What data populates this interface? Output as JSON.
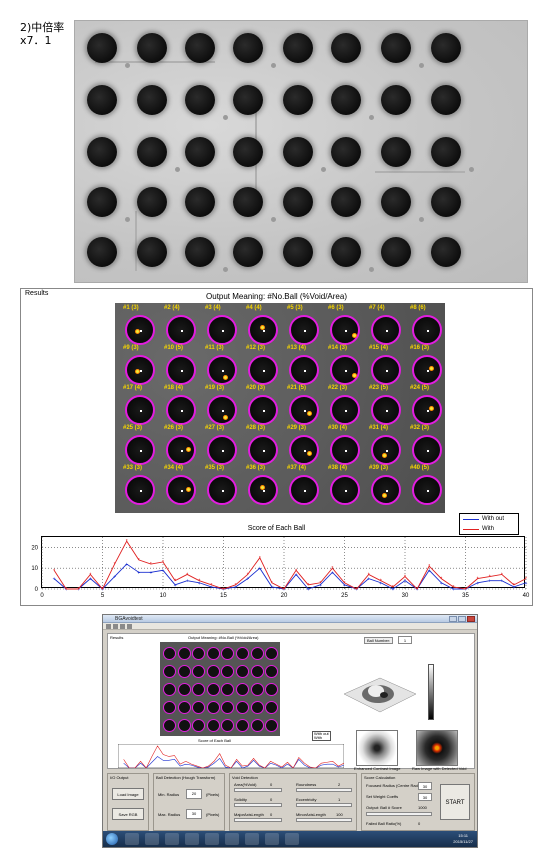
{
  "caption": {
    "line1": "2)中倍率",
    "line2": "x7．1"
  },
  "results": {
    "panel_label": "Results",
    "output_title": "Output Meaning: #No.Ball (%Void/Area)",
    "ball_labels": [
      "#1 (3)",
      "#2 (4)",
      "#3 (4)",
      "#4 (4)",
      "#5 (3)",
      "#6 (3)",
      "#7 (4)",
      "#8 (6)",
      "#9 (3)",
      "#10 (5)",
      "#11 (3)",
      "#12 (3)",
      "#13 (4)",
      "#14 (3)",
      "#15 (4)",
      "#16 (3)",
      "#17 (4)",
      "#18 (4)",
      "#19 (3)",
      "#20 (3)",
      "#21 (5)",
      "#22 (3)",
      "#23 (5)",
      "#24 (5)",
      "#25 (3)",
      "#26 (3)",
      "#27 (3)",
      "#28 (3)",
      "#29 (3)",
      "#30 (4)",
      "#31 (4)",
      "#32 (3)",
      "#33 (3)",
      "#34 (4)",
      "#35 (3)",
      "#36 (3)",
      "#37 (4)",
      "#38 (4)",
      "#39 (3)",
      "#40 (5)"
    ],
    "score_title": "Score of Each Ball"
  },
  "chart_data": {
    "type": "line",
    "title": "Score of Each Ball",
    "xlabel": "",
    "ylabel": "",
    "xlim": [
      0,
      40
    ],
    "ylim": [
      0,
      25
    ],
    "x_ticks": [
      "0",
      "5",
      "10",
      "15",
      "20",
      "25",
      "30",
      "35",
      "40"
    ],
    "y_ticks": [
      "0",
      "10",
      "20"
    ],
    "grid": "dotted",
    "legend_position": "top-right",
    "x": [
      1,
      2,
      3,
      4,
      5,
      6,
      7,
      8,
      9,
      10,
      11,
      12,
      13,
      14,
      15,
      16,
      17,
      18,
      19,
      20,
      21,
      22,
      23,
      24,
      25,
      26,
      27,
      28,
      29,
      30,
      31,
      32,
      33,
      34,
      35,
      36,
      37,
      38,
      39,
      40
    ],
    "series": [
      {
        "name": "With out",
        "color": "#1a2fd0",
        "values": [
          5,
          0,
          0,
          5,
          0,
          6,
          12,
          8,
          8,
          9,
          2,
          4,
          3,
          1,
          0,
          1,
          5,
          10,
          1,
          0,
          7,
          0,
          2,
          8,
          2,
          0,
          5,
          3,
          0,
          4,
          0,
          9,
          3,
          0,
          0,
          3,
          4,
          4,
          1,
          3
        ]
      },
      {
        "name": "With",
        "color": "#e02020",
        "values": [
          9,
          0,
          0,
          7,
          0,
          12,
          23,
          14,
          12,
          13,
          4,
          7,
          4,
          2,
          0,
          2,
          7,
          15,
          3,
          0,
          9,
          2,
          3,
          10,
          3,
          0,
          7,
          4,
          1,
          6,
          0,
          11,
          5,
          1,
          0,
          5,
          6,
          7,
          2,
          5
        ]
      }
    ]
  },
  "window": {
    "title": "BGAvoidtest",
    "results_label": "Results",
    "output_title": "Output Meaning: #No.Ball (%Void/Area)",
    "score_title": "Score of Each Ball",
    "ball_number_label": "Ball Number:",
    "ball_number_value": "1",
    "enhanced_label": "Enhanced Contrast Image",
    "raw_label": "Raw Image with Detected Void",
    "legend_without": "With out",
    "legend_with": "With",
    "io_label": "I/O Output",
    "load_button": "Load Image",
    "save_button": "Save RGB",
    "ball_detect_label": "Ball Detection (Hough Transform)",
    "min_radius_label": "Min. Radius",
    "min_radius_value": "20",
    "min_radius_unit": "(Pixels)",
    "max_radius_label": "Max. Radius",
    "max_radius_value": "30",
    "max_radius_unit": "(Pixels)",
    "void_detect_label": "Void Detection",
    "area_label": "Area(%Void)",
    "area_value": "0",
    "solidity_label": "Solidity",
    "solidity_value": "0",
    "major_axis_label": "MajorAxisLength",
    "major_axis_value": "0",
    "roundness_label": "Roundness",
    "roundness_value": "2",
    "eccentricity_label": "Eccentricity",
    "eccentricity_value": "1",
    "minor_axis_label": "MinorAxisLength",
    "minor_axis_value": "100",
    "score_calc_label": "Score Calculation",
    "focused_radius_label": "Focused Radius (Centre Radius)",
    "focused_radius_value": "30",
    "set_weight_label": "Set Weight Coeffs",
    "set_weight_value": "30",
    "output_ball_score_label": "Output: Ball # Score",
    "output_ball_score_value": "1000",
    "failed_ball_label": "Failed Ball Ratio(%)",
    "failed_ball_value": "0",
    "start_button": "START",
    "clock_time": "15:11",
    "clock_date": "2015/11/27"
  }
}
